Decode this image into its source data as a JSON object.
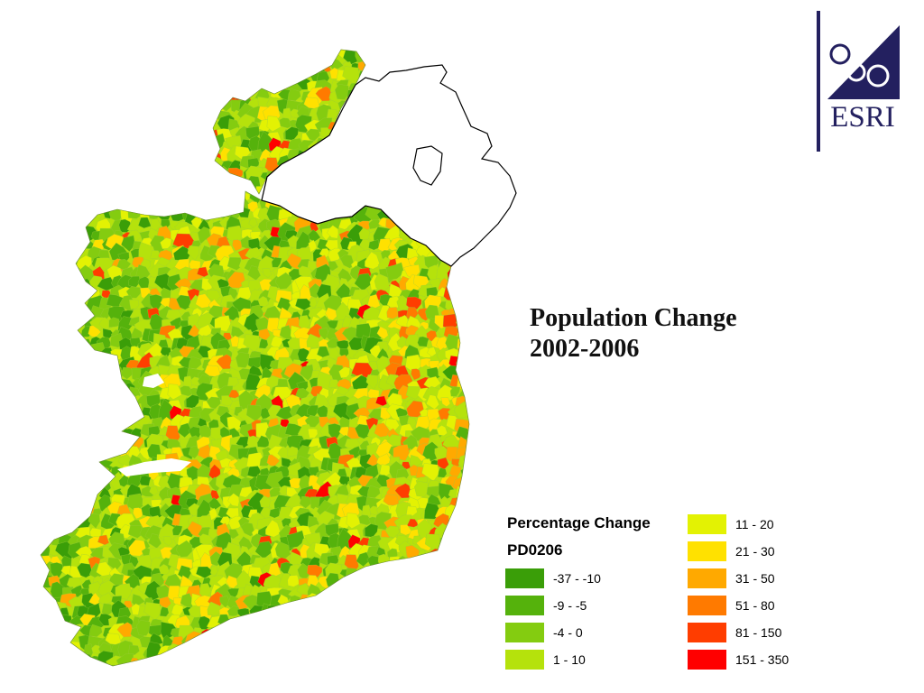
{
  "title": {
    "line1": "Population Change",
    "line2": "2002-2006"
  },
  "logo": {
    "text": "ESRI",
    "color": "#23205f",
    "icon": "esri-seal-icon"
  },
  "legend": {
    "heading": "Percentage Change",
    "field": "PD0206",
    "classes": [
      {
        "label": "-37 - -10",
        "color": "#3a9e08"
      },
      {
        "label": "-9 - -5",
        "color": "#55b20c"
      },
      {
        "label": "-4 - 0",
        "color": "#84cc10"
      },
      {
        "label": "1 - 10",
        "color": "#b5e20c"
      },
      {
        "label": "11 - 20",
        "color": "#e3f203"
      },
      {
        "label": "21 - 30",
        "color": "#ffe100"
      },
      {
        "label": "31 - 50",
        "color": "#ffa900"
      },
      {
        "label": "51 - 80",
        "color": "#ff7a00"
      },
      {
        "label": "81 - 150",
        "color": "#ff3d00"
      },
      {
        "label": "151 - 350",
        "color": "#ff0000"
      }
    ]
  },
  "map": {
    "region": "Ireland",
    "unit": "Electoral divisions",
    "northern_ireland_fill": "#ffffff",
    "outline_color": "#000000"
  }
}
